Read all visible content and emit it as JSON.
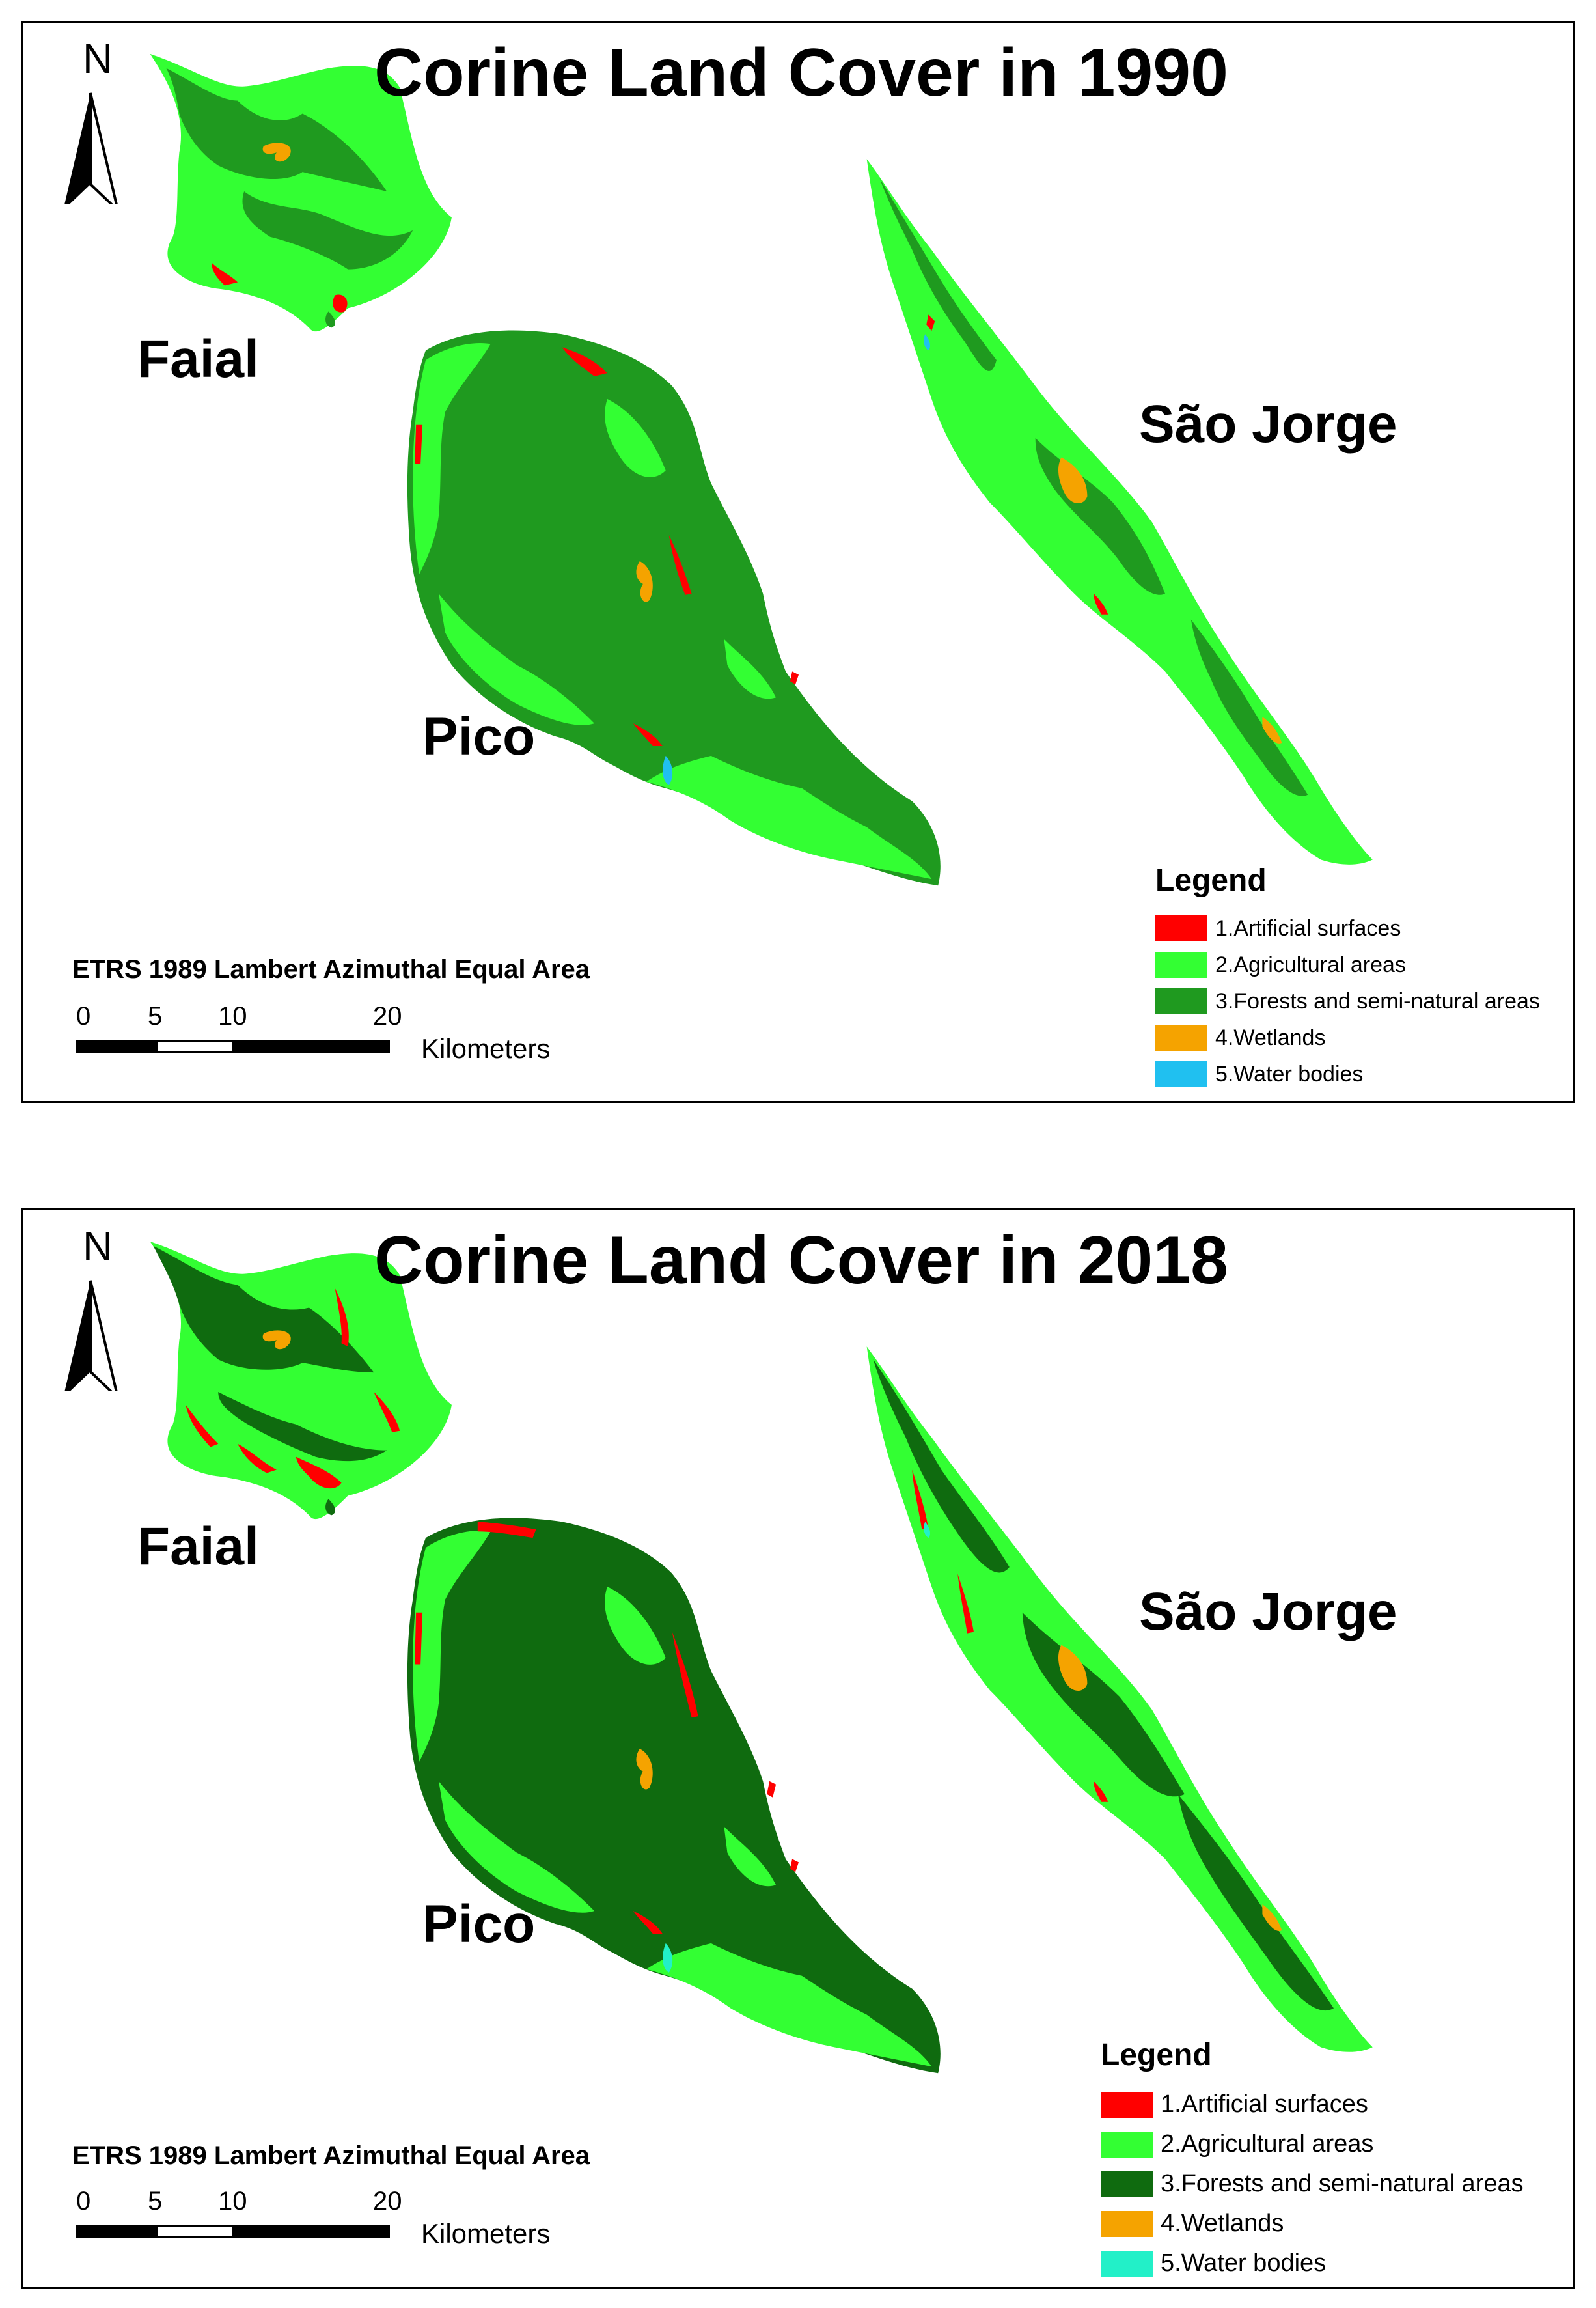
{
  "maps": [
    {
      "title": "Corine Land Cover in 1990",
      "north_label": "N",
      "islands": {
        "faial": "Faial",
        "pico": "Pico",
        "sao_jorge": "São Jorge"
      },
      "projection": "ETRS 1989 Lambert Azimuthal Equal Area",
      "scale": {
        "ticks": [
          "0",
          "5",
          "10",
          "20"
        ],
        "units": "Kilometers"
      },
      "legend": {
        "title": "Legend",
        "items": [
          {
            "label": "1.Artificial surfaces",
            "color": "#ff0000"
          },
          {
            "label": "2.Agricultural areas",
            "color": "#33ff33"
          },
          {
            "label": "3.Forests and semi-natural areas",
            "color": "#1f9a1f"
          },
          {
            "label": "4.Wetlands",
            "color": "#f5a300"
          },
          {
            "label": "5.Water bodies",
            "color": "#20c0f0"
          }
        ]
      }
    },
    {
      "title": "Corine Land Cover in 2018",
      "north_label": "N",
      "islands": {
        "faial": "Faial",
        "pico": "Pico",
        "sao_jorge": "São Jorge"
      },
      "projection": "ETRS 1989 Lambert Azimuthal Equal Area",
      "scale": {
        "ticks": [
          "0",
          "5",
          "10",
          "20"
        ],
        "units": "Kilometers"
      },
      "legend": {
        "title": "Legend",
        "items": [
          {
            "label": "1.Artificial surfaces",
            "color": "#ff0000"
          },
          {
            "label": "2.Agricultural areas",
            "color": "#33ff33"
          },
          {
            "label": "3.Forests and semi-natural areas",
            "color": "#0f6b0f"
          },
          {
            "label": "4.Wetlands",
            "color": "#f5a300"
          },
          {
            "label": "5.Water bodies",
            "color": "#22f0c8"
          }
        ]
      }
    }
  ]
}
